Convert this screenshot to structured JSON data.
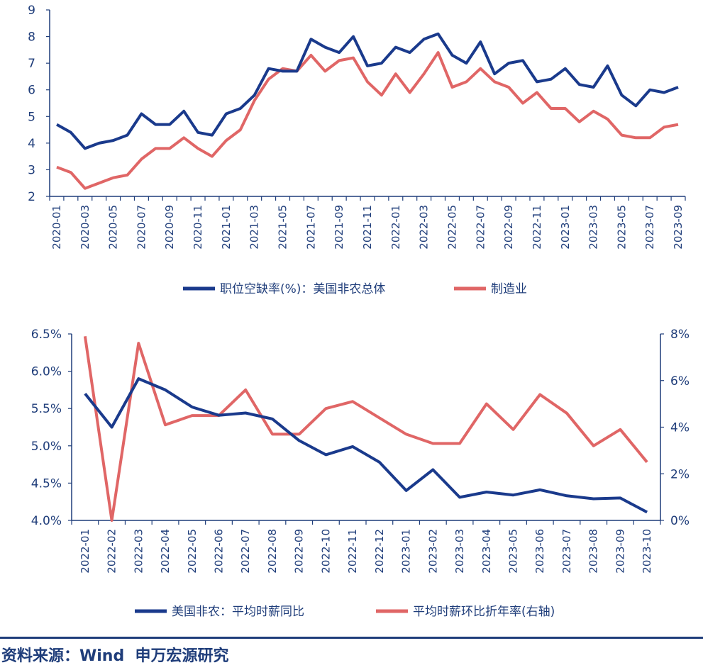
{
  "colors": {
    "navy": "#1a3a8c",
    "red": "#e06666",
    "axis": "#1f3d7a"
  },
  "chart_data": [
    {
      "type": "line",
      "title": "",
      "ylim": [
        2,
        9
      ],
      "yticks": [
        "2",
        "3",
        "4",
        "5",
        "6",
        "7",
        "8",
        "9"
      ],
      "x": [
        "2020-01",
        "2020-02",
        "2020-03",
        "2020-04",
        "2020-05",
        "2020-06",
        "2020-07",
        "2020-08",
        "2020-09",
        "2020-10",
        "2020-11",
        "2020-12",
        "2021-01",
        "2021-02",
        "2021-03",
        "2021-04",
        "2021-05",
        "2021-06",
        "2021-07",
        "2021-08",
        "2021-09",
        "2021-10",
        "2021-11",
        "2021-12",
        "2022-01",
        "2022-02",
        "2022-03",
        "2022-04",
        "2022-05",
        "2022-06",
        "2022-07",
        "2022-08",
        "2022-09",
        "2022-10",
        "2022-11",
        "2022-12",
        "2023-01",
        "2023-02",
        "2023-03",
        "2023-04",
        "2023-05",
        "2023-06",
        "2023-07",
        "2023-08",
        "2023-09"
      ],
      "xtick_labels": [
        "2020-01",
        "2020-03",
        "2020-05",
        "2020-07",
        "2020-09",
        "2020-11",
        "2021-01",
        "2021-03",
        "2021-05",
        "2021-07",
        "2021-09",
        "2021-11",
        "2022-01",
        "2022-03",
        "2022-05",
        "2022-07",
        "2022-09",
        "2022-11",
        "2023-01",
        "2023-03",
        "2023-05",
        "2023-07",
        "2023-09"
      ],
      "series": [
        {
          "name": "职位空缺率(%)：美国非农总体",
          "color": "#1a3a8c",
          "values": [
            4.7,
            4.4,
            3.8,
            4.0,
            4.1,
            4.3,
            5.1,
            4.7,
            4.7,
            5.2,
            4.4,
            4.3,
            5.1,
            5.3,
            5.8,
            6.8,
            6.7,
            6.7,
            7.9,
            7.6,
            7.4,
            8.0,
            6.9,
            7.0,
            7.6,
            7.4,
            7.9,
            8.1,
            7.3,
            7.0,
            7.8,
            6.6,
            7.0,
            7.1,
            6.3,
            6.4,
            6.8,
            6.2,
            6.1,
            6.9,
            5.8,
            5.4,
            6.0,
            5.9,
            6.1
          ]
        },
        {
          "name": "制造业",
          "color": "#e06666",
          "values": [
            3.1,
            2.9,
            2.3,
            2.5,
            2.7,
            2.8,
            3.4,
            3.8,
            3.8,
            4.2,
            3.8,
            3.5,
            4.1,
            4.5,
            5.6,
            6.4,
            6.8,
            6.7,
            7.3,
            6.7,
            7.1,
            7.2,
            6.3,
            5.8,
            6.6,
            5.9,
            6.6,
            7.4,
            6.1,
            6.3,
            6.8,
            6.3,
            6.1,
            5.5,
            5.9,
            5.3,
            5.3,
            4.8,
            5.2,
            4.9,
            4.3,
            4.2,
            4.2,
            4.6,
            4.7
          ]
        }
      ],
      "legend": "bottom"
    },
    {
      "type": "line",
      "title": "",
      "ylim": [
        4.0,
        6.5
      ],
      "yticks": [
        "4.0%",
        "4.5%",
        "5.0%",
        "5.5%",
        "6.0%",
        "6.5%"
      ],
      "y2lim": [
        0,
        8
      ],
      "y2ticks": [
        "0%",
        "2%",
        "4%",
        "6%",
        "8%"
      ],
      "categories": [
        "2022-01",
        "2022-02",
        "2022-03",
        "2022-04",
        "2022-05",
        "2022-06",
        "2022-07",
        "2022-08",
        "2022-09",
        "2022-10",
        "2022-11",
        "2022-12",
        "2023-01",
        "2023-02",
        "2023-03",
        "2023-04",
        "2023-05",
        "2023-06",
        "2023-07",
        "2023-08",
        "2023-09",
        "2023-10"
      ],
      "series": [
        {
          "name": "美国非农：平均时薪同比",
          "axis": "left",
          "color": "#1a3a8c",
          "values": [
            5.7,
            5.25,
            5.9,
            5.75,
            5.52,
            5.41,
            5.44,
            5.36,
            5.07,
            4.88,
            4.99,
            4.78,
            4.4,
            4.68,
            4.31,
            4.38,
            4.34,
            4.41,
            4.33,
            4.29,
            4.3,
            4.11
          ]
        },
        {
          "name": "平均时薪环比折年率(右轴)",
          "axis": "right",
          "color": "#e06666",
          "values": [
            7.9,
            0.0,
            7.6,
            4.1,
            4.5,
            4.5,
            5.6,
            3.7,
            3.7,
            4.8,
            5.1,
            4.4,
            3.7,
            3.3,
            3.3,
            5.0,
            3.9,
            5.4,
            4.6,
            3.2,
            3.9,
            2.5
          ]
        }
      ],
      "legend": "bottom"
    }
  ],
  "footer": {
    "source_text": "资料来源：Wind  申万宏源研究"
  }
}
